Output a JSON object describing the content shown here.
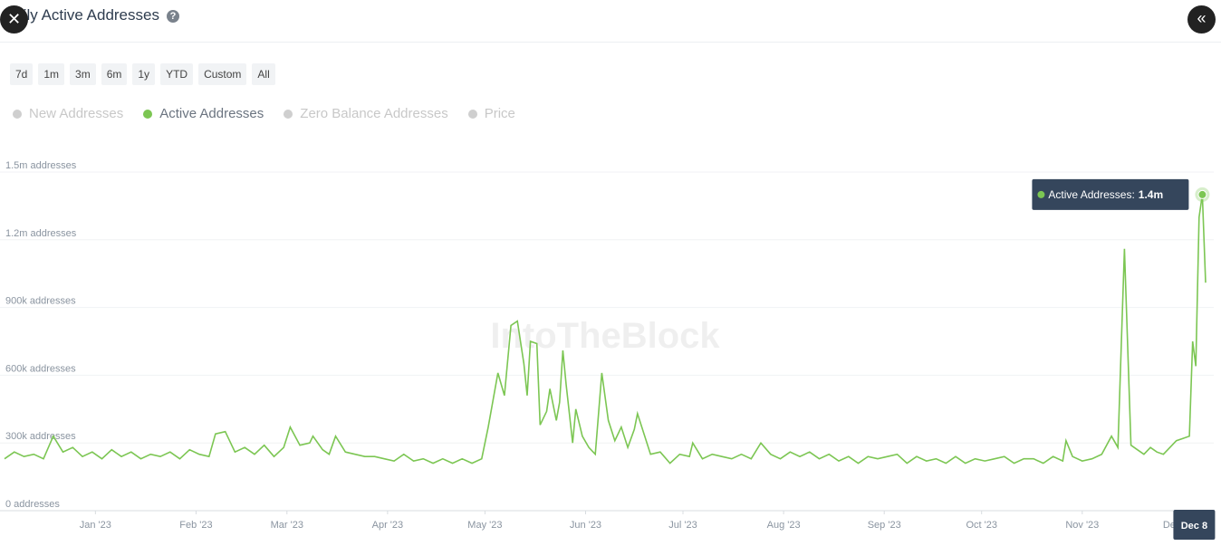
{
  "header": {
    "title": "Daily Active Addresses"
  },
  "ranges": [
    "7d",
    "1m",
    "3m",
    "6m",
    "1y",
    "YTD",
    "Custom",
    "All"
  ],
  "chart_data": {
    "type": "line",
    "watermark": "IntoTheBlock",
    "series": [
      {
        "name": "New Addresses",
        "color": "#cfcfcf",
        "visible": false
      },
      {
        "name": "Active Addresses",
        "color": "#7cc653",
        "visible": true,
        "x": [
          -28,
          -25,
          -22,
          -19,
          -16,
          -13,
          -10,
          -7,
          -4,
          -1,
          2,
          5,
          8,
          11,
          14,
          17,
          20,
          23,
          26,
          29,
          32,
          35,
          37,
          40,
          43,
          46,
          49,
          52,
          55,
          58,
          60,
          63,
          66,
          67,
          70,
          72,
          74,
          77,
          80,
          83,
          86,
          89,
          92,
          95,
          98,
          101,
          104,
          107,
          110,
          113,
          116,
          119,
          121,
          124,
          126,
          128,
          130,
          132,
          133,
          134,
          136,
          137,
          139,
          140,
          142,
          143,
          144,
          145,
          147,
          148,
          150,
          152,
          154,
          156,
          158,
          160,
          162,
          164,
          166,
          167,
          169,
          171,
          174,
          177,
          180,
          183,
          184,
          187,
          190,
          193,
          196,
          199,
          202,
          205,
          208,
          211,
          214,
          217,
          220,
          223,
          226,
          229,
          232,
          235,
          238,
          241,
          244,
          247,
          250,
          253,
          256,
          259,
          262,
          265,
          268,
          271,
          274,
          277,
          280,
          283,
          286,
          289,
          292,
          295,
          298,
          299,
          301,
          304,
          307,
          310,
          313,
          315,
          317,
          319,
          321,
          323,
          325,
          327,
          329,
          331,
          333,
          335,
          337,
          338,
          339,
          340,
          341,
          342
        ],
        "values": [
          230000,
          260000,
          240000,
          250000,
          230000,
          330000,
          260000,
          280000,
          240000,
          260000,
          230000,
          270000,
          240000,
          260000,
          230000,
          250000,
          240000,
          260000,
          230000,
          270000,
          250000,
          240000,
          340000,
          350000,
          260000,
          280000,
          250000,
          290000,
          240000,
          280000,
          370000,
          290000,
          300000,
          330000,
          270000,
          250000,
          330000,
          260000,
          250000,
          240000,
          240000,
          230000,
          220000,
          250000,
          220000,
          230000,
          210000,
          230000,
          210000,
          230000,
          210000,
          230000,
          370000,
          610000,
          510000,
          820000,
          840000,
          650000,
          510000,
          750000,
          740000,
          380000,
          440000,
          540000,
          400000,
          480000,
          710000,
          560000,
          300000,
          450000,
          330000,
          280000,
          250000,
          610000,
          400000,
          310000,
          370000,
          280000,
          360000,
          430000,
          340000,
          250000,
          260000,
          210000,
          250000,
          240000,
          300000,
          230000,
          250000,
          240000,
          230000,
          250000,
          230000,
          300000,
          250000,
          230000,
          260000,
          240000,
          260000,
          230000,
          250000,
          220000,
          240000,
          210000,
          240000,
          230000,
          240000,
          250000,
          210000,
          240000,
          220000,
          230000,
          210000,
          240000,
          210000,
          230000,
          220000,
          230000,
          240000,
          210000,
          230000,
          230000,
          210000,
          240000,
          220000,
          310000,
          240000,
          220000,
          230000,
          250000,
          330000,
          280000,
          1160000,
          290000,
          270000,
          250000,
          280000,
          260000,
          250000,
          280000,
          310000,
          320000,
          330000,
          750000,
          640000,
          1300000,
          1400000,
          1010000
        ]
      },
      {
        "name": "Zero Balance Addresses",
        "color": "#cfcfcf",
        "visible": false
      },
      {
        "name": "Price",
        "color": "#cfcfcf",
        "visible": false
      }
    ],
    "xlim": [
      -28,
      342
    ],
    "xticks": [
      {
        "value": 0,
        "label": "Jan '23"
      },
      {
        "value": 31,
        "label": "Feb '23"
      },
      {
        "value": 59,
        "label": "Mar '23"
      },
      {
        "value": 90,
        "label": "Apr '23"
      },
      {
        "value": 120,
        "label": "May '23"
      },
      {
        "value": 151,
        "label": "Jun '23"
      },
      {
        "value": 181,
        "label": "Jul '23"
      },
      {
        "value": 212,
        "label": "Aug '23"
      },
      {
        "value": 243,
        "label": "Sep '23"
      },
      {
        "value": 273,
        "label": "Oct '23"
      },
      {
        "value": 304,
        "label": "Nov '23"
      },
      {
        "value": 334,
        "label": "Dec '23"
      }
    ],
    "ylim": [
      0,
      1500000
    ],
    "yticks": [
      {
        "value": 0,
        "label": "0 addresses"
      },
      {
        "value": 300000,
        "label": "300k addresses"
      },
      {
        "value": 600000,
        "label": "600k addresses"
      },
      {
        "value": 900000,
        "label": "900k addresses"
      },
      {
        "value": 1200000,
        "label": "1.2m addresses"
      },
      {
        "value": 1500000,
        "label": "1.5m addresses"
      }
    ],
    "grid": true,
    "tooltip": {
      "label": "Active Addresses:",
      "value_label": "1.4m",
      "x_label": "Dec 8"
    }
  }
}
